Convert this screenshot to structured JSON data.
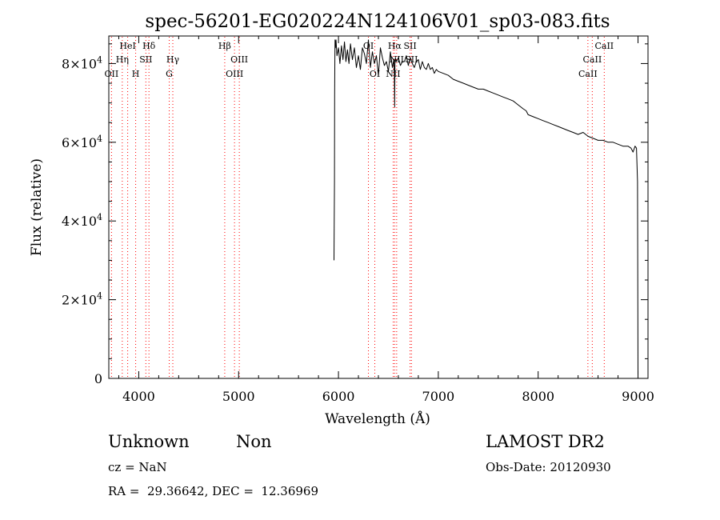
{
  "chart_data": {
    "type": "line",
    "title": "spec-56201-EG020224N124106V01_sp03-083.fits",
    "xlabel": "Wavelength (Å)",
    "ylabel": "Flux (relative)",
    "xlim": [
      3700,
      9100
    ],
    "ylim": [
      0,
      87000
    ],
    "xticks": [
      {
        "value": 4000,
        "label": "4000"
      },
      {
        "value": 5000,
        "label": "5000"
      },
      {
        "value": 6000,
        "label": "6000"
      },
      {
        "value": 7000,
        "label": "7000"
      },
      {
        "value": 8000,
        "label": "8000"
      },
      {
        "value": 9000,
        "label": "9000"
      }
    ],
    "yticks": [
      {
        "value": 0,
        "mantissa": "0",
        "exponent": ""
      },
      {
        "value": 20000,
        "mantissa": "2×10",
        "exponent": "4"
      },
      {
        "value": 40000,
        "mantissa": "4×10",
        "exponent": "4"
      },
      {
        "value": 60000,
        "mantissa": "6×10",
        "exponent": "4"
      },
      {
        "value": 80000,
        "mantissa": "8×10",
        "exponent": "4"
      }
    ],
    "grid": false,
    "series": [
      {
        "color": "#000000",
        "x": [
          5955,
          5958,
          5960,
          5962,
          5964,
          5966,
          5970,
          5975,
          5985,
          6000,
          6015,
          6030,
          6045,
          6060,
          6075,
          6090,
          6105,
          6120,
          6140,
          6160,
          6180,
          6200,
          6220,
          6240,
          6260,
          6280,
          6300,
          6320,
          6340,
          6360,
          6380,
          6400,
          6420,
          6440,
          6460,
          6480,
          6500,
          6520,
          6540,
          6555,
          6560,
          6563,
          6566,
          6570,
          6580,
          6600,
          6620,
          6640,
          6660,
          6680,
          6700,
          6720,
          6740,
          6760,
          6780,
          6800,
          6820,
          6840,
          6860,
          6880,
          6900,
          6920,
          6940,
          6960,
          6980,
          7000,
          7050,
          7100,
          7150,
          7200,
          7250,
          7300,
          7350,
          7400,
          7450,
          7500,
          7550,
          7600,
          7650,
          7700,
          7750,
          7800,
          7850,
          7880,
          7900,
          7950,
          8000,
          8050,
          8100,
          8150,
          8200,
          8250,
          8300,
          8350,
          8400,
          8450,
          8500,
          8550,
          8600,
          8650,
          8700,
          8750,
          8800,
          8850,
          8900,
          8930,
          8950,
          8970,
          8985,
          8995,
          9000
        ],
        "y": [
          30000,
          40000,
          50000,
          72000,
          82000,
          86000,
          84000,
          86000,
          82000,
          84000,
          80000,
          84500,
          81000,
          85500,
          80500,
          83500,
          80000,
          85000,
          81000,
          84000,
          79000,
          82000,
          78500,
          84000,
          82500,
          80000,
          86000,
          79000,
          83000,
          80000,
          82000,
          77000,
          84000,
          81500,
          79500,
          80500,
          78000,
          83000,
          79000,
          81000,
          76000,
          69000,
          80000,
          81500,
          80500,
          81500,
          79500,
          80500,
          80500,
          82000,
          79500,
          81500,
          80000,
          79000,
          80500,
          81000,
          78500,
          80500,
          79000,
          78500,
          80000,
          78500,
          79000,
          77500,
          78500,
          78000,
          77500,
          77000,
          76000,
          75500,
          75000,
          74500,
          74000,
          73500,
          73500,
          73000,
          72500,
          72000,
          71500,
          71000,
          70500,
          69500,
          68500,
          68000,
          67000,
          66500,
          66000,
          65500,
          65000,
          64500,
          64000,
          63500,
          63000,
          62500,
          62000,
          62500,
          61500,
          61000,
          60500,
          60500,
          60000,
          60000,
          59500,
          59000,
          59000,
          58500,
          57500,
          59000,
          58500,
          50000,
          1000
        ]
      }
    ],
    "line_color": "#ff0000",
    "lines": [
      {
        "x": 3727,
        "label": "OII",
        "row": 3
      },
      {
        "x": 3835,
        "label": "Hη",
        "row": 2
      },
      {
        "x": 3889,
        "label": "HeI",
        "row": 1
      },
      {
        "x": 3969,
        "label": "H",
        "row": 3
      },
      {
        "x": 4071,
        "label": "SII",
        "row": 2
      },
      {
        "x": 4102,
        "label": "Hδ",
        "row": 1
      },
      {
        "x": 4305,
        "label": "G",
        "row": 3
      },
      {
        "x": 4341,
        "label": "Hγ",
        "row": 2
      },
      {
        "x": 4861,
        "label": "Hβ",
        "row": 1
      },
      {
        "x": 4959,
        "label": "OIII",
        "row": 3
      },
      {
        "x": 5007,
        "label": "OIII",
        "row": 2
      },
      {
        "x": 6300,
        "label": "OI",
        "row": 1
      },
      {
        "x": 6364,
        "label": "OI",
        "row": 3
      },
      {
        "x": 6548,
        "label": "NII",
        "row": 3
      },
      {
        "x": 6563,
        "label": "Hα",
        "row": 1
      },
      {
        "x": 6583,
        "label": "NII",
        "row": 2
      },
      {
        "x": 6717,
        "label": "SII",
        "row": 1
      },
      {
        "x": 6731,
        "label": "SII",
        "row": 2
      },
      {
        "x": 8498,
        "label": "CaII",
        "row": 3
      },
      {
        "x": 8542,
        "label": "CaII",
        "row": 2
      },
      {
        "x": 8662,
        "label": "CaII",
        "row": 1
      }
    ]
  },
  "info": {
    "class": "Unknown",
    "subclass": "Non",
    "survey": "LAMOST DR2",
    "cz": "cz = NaN",
    "obs_date": "Obs-Date: 20120930",
    "coords": "RA =  29.36642, DEC =  12.36969"
  }
}
